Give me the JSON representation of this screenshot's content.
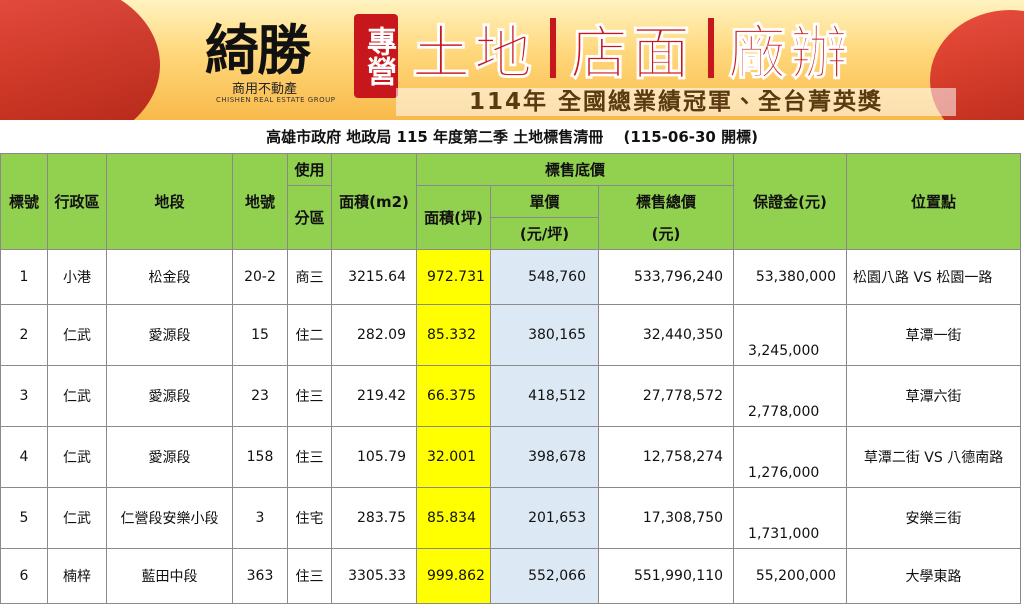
{
  "banner": {
    "logo": "綺勝",
    "logo_sub": "商用不動產",
    "logo_en": "CHISHEN REAL ESTATE GROUP",
    "tag": "專營",
    "services": [
      "土地",
      "店面",
      "廠辦"
    ],
    "slogan": "114年 全國總業績冠軍、全台菁英獎"
  },
  "title": "高雄市政府 地政局 115 年度第二季 土地標售清冊　 (115-06-30 開標)",
  "table": {
    "header": {
      "no": "標號",
      "district": "行政區",
      "section": "地段",
      "lot": "地號",
      "zone_1": "使用",
      "zone_2": "分區",
      "area_m2": "面積(m2)",
      "price_group": "標售底價",
      "area_ping": "面積(坪)",
      "unit_price_1": "單價",
      "unit_price_2": "(元/坪)",
      "total_1": "標售總價",
      "total_2": "(元)",
      "deposit": "保證金(元)",
      "location": "位置點"
    },
    "rows": [
      [
        "1",
        "小港",
        "松金段",
        "20-2",
        "商三",
        "3215.64",
        "972.731",
        "548,760",
        "533,796,240",
        "53,380,000",
        "松園八路 VS 松園一路"
      ],
      [
        "2",
        "仁武",
        "愛源段",
        "15",
        "住二",
        "282.09",
        "85.332",
        "380,165",
        "32,440,350",
        "3,245,000",
        "草潭一街"
      ],
      [
        "3",
        "仁武",
        "愛源段",
        "23",
        "住三",
        "219.42",
        "66.375",
        "418,512",
        "27,778,572",
        "2,778,000",
        "草潭六街"
      ],
      [
        "4",
        "仁武",
        "愛源段",
        "158",
        "住三",
        "105.79",
        "32.001",
        "398,678",
        "12,758,274",
        "1,276,000",
        "草潭二街 VS 八德南路"
      ],
      [
        "5",
        "仁武",
        "仁營段安樂小段",
        "3",
        "住宅",
        "283.75",
        "85.834",
        "201,653",
        "17,308,750",
        "1,731,000",
        "安樂三街"
      ],
      [
        "6",
        "楠梓",
        "藍田中段",
        "363",
        "住三",
        "3305.33",
        "999.862",
        "552,066",
        "551,990,110",
        "55,200,000",
        "大學東路"
      ]
    ]
  }
}
